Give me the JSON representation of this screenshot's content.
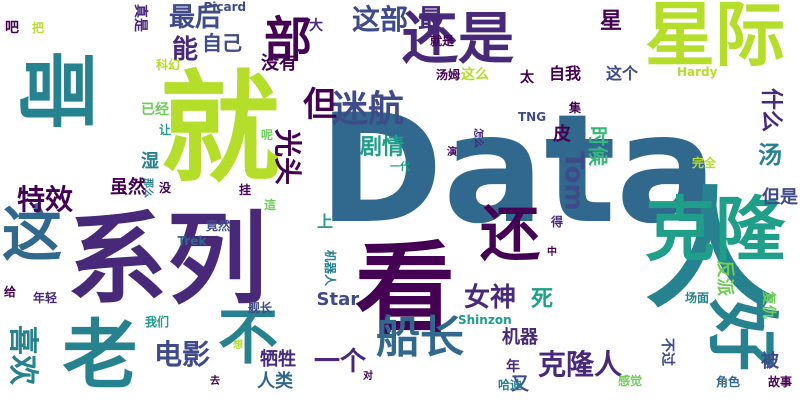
{
  "word_cloud": {
    "background": "#ffffff",
    "palette": {
      "dark_purple": "#440154",
      "purple": "#482878",
      "indigo": "#3e4a89",
      "blue": "#31688e",
      "teal_blue": "#26828e",
      "teal": "#1f9e89",
      "green": "#35b779",
      "light_green": "#6ece58",
      "lime": "#b5de2b",
      "yellow": "#fde725"
    },
    "words": [
      {
        "text": "Data",
        "color": "#31688e"
      },
      {
        "text": "看",
        "color": "#440154"
      },
      {
        "text": "系列",
        "color": "#482878"
      },
      {
        "text": "人",
        "color": "#26828e"
      },
      {
        "text": "就",
        "color": "#b5de2b"
      },
      {
        "text": "克隆",
        "color": "#1f9e89"
      },
      {
        "text": "好",
        "color": "#26828e"
      },
      {
        "text": "星际",
        "color": "#b5de2b"
      },
      {
        "text": "老",
        "color": "#26828e"
      },
      {
        "text": "还是",
        "color": "#482878"
      },
      {
        "text": "哥",
        "color": "#26828e"
      },
      {
        "text": "还",
        "color": "#440154"
      },
      {
        "text": "这",
        "color": "#31688e"
      },
      {
        "text": "不",
        "color": "#26828e"
      },
      {
        "text": "部",
        "color": "#440154"
      },
      {
        "text": "船长",
        "color": "#31688e"
      },
      {
        "text": "迷航",
        "color": "#3e4a89"
      },
      {
        "text": "这部",
        "color": "#3e4a89"
      },
      {
        "text": "克隆人",
        "color": "#482878"
      },
      {
        "text": "电影",
        "color": "#3e4a89"
      },
      {
        "text": "女神",
        "color": "#482878"
      },
      {
        "text": "但",
        "color": "#440154"
      },
      {
        "text": "能",
        "color": "#482878"
      },
      {
        "text": "最后",
        "color": "#3e4a89"
      },
      {
        "text": "最",
        "color": "#482878"
      },
      {
        "text": "喜欢",
        "color": "#26828e"
      },
      {
        "text": "Tom",
        "color": "#3e4a89"
      },
      {
        "text": "特效",
        "color": "#440154"
      },
      {
        "text": "自己",
        "color": "#3e4a89"
      },
      {
        "text": "星",
        "color": "#440154"
      },
      {
        "text": "一个",
        "color": "#482878"
      },
      {
        "text": "光头",
        "color": "#440154"
      },
      {
        "text": "剧情",
        "color": "#1f9e89"
      },
      {
        "text": "没有",
        "color": "#440154"
      },
      {
        "text": "什么",
        "color": "#482878"
      },
      {
        "text": "时候",
        "color": "#35b779"
      },
      {
        "text": "汤",
        "color": "#26828e"
      },
      {
        "text": "死",
        "color": "#1f9e89"
      },
      {
        "text": "人类",
        "color": "#31688e"
      },
      {
        "text": "牺牲",
        "color": "#482878"
      },
      {
        "text": "反派",
        "color": "#6ece58"
      },
      {
        "text": "但是",
        "color": "#3e4a89"
      },
      {
        "text": "被",
        "color": "#3e4a89"
      },
      {
        "text": "皮",
        "color": "#440154"
      },
      {
        "text": "湿",
        "color": "#26828e"
      },
      {
        "text": "虽然",
        "color": "#440154"
      },
      {
        "text": "机器",
        "color": "#482878"
      },
      {
        "text": "上",
        "color": "#1f9e89"
      },
      {
        "text": "Star",
        "color": "#3e4a89"
      },
      {
        "text": "又",
        "color": "#3e4a89"
      },
      {
        "text": "年",
        "color": "#482878"
      },
      {
        "text": "自我",
        "color": "#440154"
      },
      {
        "text": "这个",
        "color": "#3e4a89"
      },
      {
        "text": "这么",
        "color": "#b5de2b"
      },
      {
        "text": "大",
        "color": "#482878"
      },
      {
        "text": "汤姆",
        "color": "#440154"
      },
      {
        "text": "已经",
        "color": "#6ece58"
      },
      {
        "text": "复仇",
        "color": "#6ece58"
      },
      {
        "text": "太",
        "color": "#440154"
      },
      {
        "text": "不过",
        "color": "#3e4a89"
      },
      {
        "text": "Picard",
        "color": "#3e4a89"
      },
      {
        "text": "Hardy",
        "color": "#b5de2b"
      },
      {
        "text": "TNG",
        "color": "#3e4a89"
      },
      {
        "text": "Shinzon",
        "color": "#1f9e89"
      },
      {
        "text": "Trek",
        "color": "#31688e"
      },
      {
        "text": "吧",
        "color": "#440154"
      },
      {
        "text": "把",
        "color": "#b5de2b"
      },
      {
        "text": "真是",
        "color": "#482878"
      },
      {
        "text": "科幻",
        "color": "#b5de2b"
      },
      {
        "text": "就是",
        "color": "#440154"
      },
      {
        "text": "让",
        "color": "#1f9e89"
      },
      {
        "text": "呢",
        "color": "#6ece58"
      },
      {
        "text": "集",
        "color": "#440154"
      },
      {
        "text": "怎么",
        "color": "#482878"
      },
      {
        "text": "演",
        "color": "#440154"
      },
      {
        "text": "一代",
        "color": "#1f9e89"
      },
      {
        "text": "觉得",
        "color": "#31688e"
      },
      {
        "text": "完全",
        "color": "#b5de2b"
      },
      {
        "text": "那么",
        "color": "#26828e"
      },
      {
        "text": "没",
        "color": "#440154"
      },
      {
        "text": "挂",
        "color": "#440154"
      },
      {
        "text": "這",
        "color": "#6ece58"
      },
      {
        "text": "竟然",
        "color": "#3e4a89"
      },
      {
        "text": "得",
        "color": "#482878"
      },
      {
        "text": "中",
        "color": "#440154"
      },
      {
        "text": "机器人",
        "color": "#26828e"
      },
      {
        "text": "给",
        "color": "#440154"
      },
      {
        "text": "年轻",
        "color": "#482878"
      },
      {
        "text": "舰长",
        "color": "#3e4a89"
      },
      {
        "text": "场面",
        "color": "#26828e"
      },
      {
        "text": "我们",
        "color": "#1f9e89"
      },
      {
        "text": "想",
        "color": "#b5de2b"
      },
      {
        "text": "去",
        "color": "#440154"
      },
      {
        "text": "对",
        "color": "#440154"
      },
      {
        "text": "哈迪",
        "color": "#26828e"
      },
      {
        "text": "感觉",
        "color": "#6ece58"
      },
      {
        "text": "角色",
        "color": "#31688e"
      },
      {
        "text": "故事",
        "color": "#440154"
      }
    ]
  }
}
